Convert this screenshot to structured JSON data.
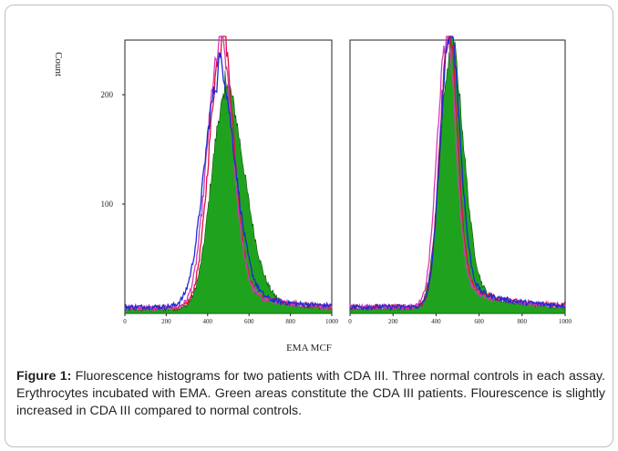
{
  "figure": {
    "caption_label": "Figure 1:",
    "caption_text": " Fluorescence histograms for two patients with CDA III. Three normal controls in each assay. Erythrocytes incubated with EMA. Green areas constitute the CDA III patients. Flourescence is slightly increased in CDA III compared to normal controls."
  },
  "chart_data": [
    {
      "type": "area",
      "ylabel": "Count",
      "xlabel": "EMA MCF",
      "xlim": [
        0,
        1000
      ],
      "ylim": [
        0,
        250
      ],
      "x_ticks": [
        "0",
        "200",
        "400",
        "600",
        "800",
        "1000"
      ],
      "y_ticks": [
        "100",
        "200"
      ],
      "series": [
        {
          "color": "#1fa31f",
          "kind": "filled",
          "peak_x": 480,
          "peak_y": 190,
          "width_left": 65,
          "width_right": 95,
          "baseline": 4
        },
        {
          "color": "#e0103a",
          "kind": "line",
          "peak_x": 465,
          "peak_y": 238,
          "width_left": 58,
          "width_right": 58,
          "baseline": 5
        },
        {
          "color": "#d43ab8",
          "kind": "line",
          "peak_x": 455,
          "peak_y": 232,
          "width_left": 60,
          "width_right": 62,
          "baseline": 5
        },
        {
          "color": "#1a2bd6",
          "kind": "line",
          "peak_x": 450,
          "peak_y": 205,
          "width_left": 68,
          "width_right": 78,
          "baseline": 6
        }
      ]
    },
    {
      "type": "area",
      "ylabel": "",
      "xlabel": "EMA MCF",
      "xlim": [
        0,
        1000
      ],
      "ylim": [
        0,
        250
      ],
      "x_ticks": [
        "0",
        "200",
        "400",
        "600",
        "800",
        "1000"
      ],
      "y_ticks": [],
      "series": [
        {
          "color": "#1fa31f",
          "kind": "filled",
          "peak_x": 465,
          "peak_y": 228,
          "width_left": 48,
          "width_right": 60,
          "baseline": 5
        },
        {
          "color": "#e0103a",
          "kind": "line",
          "peak_x": 455,
          "peak_y": 238,
          "width_left": 40,
          "width_right": 42,
          "baseline": 6
        },
        {
          "color": "#d43ab8",
          "kind": "line",
          "peak_x": 445,
          "peak_y": 236,
          "width_left": 42,
          "width_right": 44,
          "baseline": 6
        },
        {
          "color": "#1a2bd6",
          "kind": "line",
          "peak_x": 460,
          "peak_y": 240,
          "width_left": 42,
          "width_right": 48,
          "baseline": 6
        }
      ]
    }
  ]
}
